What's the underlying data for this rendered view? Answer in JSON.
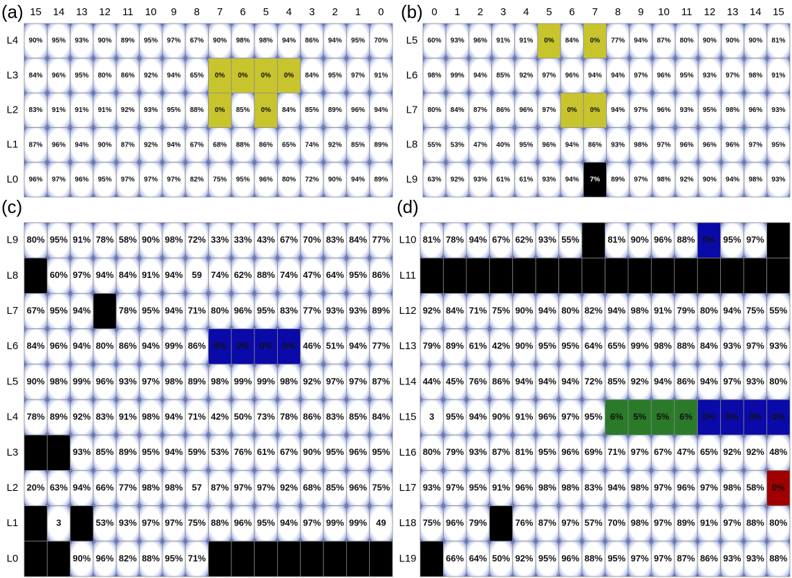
{
  "panels": [
    {
      "label": "(a)",
      "columns": [
        "15",
        "14",
        "13",
        "12",
        "11",
        "10",
        "9",
        "8",
        "7",
        "6",
        "5",
        "4",
        "3",
        "2",
        "1",
        "0"
      ],
      "rows": [
        {
          "label": "L4",
          "cells": [
            "90%",
            "95%",
            "93%",
            "90%",
            "89%",
            "95%",
            "97%",
            "67%",
            "90%",
            "98%",
            "98%",
            "94%",
            "86%",
            "94%",
            "95%",
            "70%"
          ]
        },
        {
          "label": "L3",
          "cells": [
            "84%",
            "96%",
            "95%",
            "80%",
            "86%",
            "92%",
            "94%",
            "65%",
            "0%",
            "0%",
            "0%",
            "0%",
            "84%",
            "95%",
            "97%",
            "91%"
          ]
        },
        {
          "label": "L2",
          "cells": [
            "83%",
            "91%",
            "91%",
            "91%",
            "92%",
            "93%",
            "95%",
            "88%",
            "0%",
            "85%",
            "0%",
            "84%",
            "85%",
            "89%",
            "96%",
            "94%"
          ]
        },
        {
          "label": "L1",
          "cells": [
            "87%",
            "96%",
            "94%",
            "90%",
            "87%",
            "92%",
            "94%",
            "67%",
            "68%",
            "88%",
            "86%",
            "65%",
            "74%",
            "92%",
            "85%",
            "89%"
          ]
        },
        {
          "label": "L0",
          "cells": [
            "96%",
            "97%",
            "96%",
            "95%",
            "97%",
            "97%",
            "97%",
            "82%",
            "75%",
            "95%",
            "96%",
            "80%",
            "72%",
            "90%",
            "94%",
            "89%"
          ]
        }
      ],
      "highlights": [
        {
          "color": "#c8c42e",
          "cells": [
            [
              1,
              8
            ],
            [
              1,
              9
            ],
            [
              1,
              10
            ],
            [
              1,
              11
            ],
            [
              2,
              8
            ],
            [
              2,
              10
            ]
          ]
        }
      ]
    },
    {
      "label": "(b)",
      "columns": [
        "0",
        "1",
        "2",
        "3",
        "4",
        "5",
        "6",
        "7",
        "8",
        "9",
        "10",
        "11",
        "12",
        "13",
        "14",
        "15"
      ],
      "rows": [
        {
          "label": "L5",
          "cells": [
            "60%",
            "93%",
            "96%",
            "91%",
            "91%",
            "0%",
            "84%",
            "0%",
            "77%",
            "94%",
            "87%",
            "80%",
            "90%",
            "90%",
            "90%",
            "81%"
          ]
        },
        {
          "label": "L6",
          "cells": [
            "98%",
            "99%",
            "94%",
            "85%",
            "92%",
            "97%",
            "96%",
            "94%",
            "94%",
            "97%",
            "96%",
            "95%",
            "93%",
            "97%",
            "98%",
            "91%"
          ]
        },
        {
          "label": "L7",
          "cells": [
            "80%",
            "84%",
            "87%",
            "86%",
            "96%",
            "97%",
            "0%",
            "0%",
            "94%",
            "97%",
            "96%",
            "93%",
            "95%",
            "98%",
            "96%",
            "93%"
          ]
        },
        {
          "label": "L8",
          "cells": [
            "55%",
            "53%",
            "47%",
            "40%",
            "95%",
            "96%",
            "94%",
            "86%",
            "93%",
            "98%",
            "97%",
            "96%",
            "96%",
            "96%",
            "97%",
            "95%"
          ]
        },
        {
          "label": "L9",
          "cells": [
            "63%",
            "92%",
            "93%",
            "61%",
            "61%",
            "93%",
            "94%",
            "7%",
            "89%",
            "97%",
            "98%",
            "92%",
            "90%",
            "94%",
            "98%",
            "93%"
          ]
        }
      ],
      "highlights": [
        {
          "color": "#c8c42e",
          "cells": [
            [
              0,
              5
            ],
            [
              0,
              7
            ],
            [
              2,
              6
            ],
            [
              2,
              7
            ]
          ]
        },
        {
          "color": "#000000",
          "cells": [
            [
              4,
              7
            ]
          ]
        }
      ]
    },
    {
      "label": "(c)",
      "columns": [],
      "rows": [
        {
          "label": "L9",
          "cells": [
            "80%",
            "95%",
            "91%",
            "78%",
            "58%",
            "90%",
            "98%",
            "72%",
            "33%",
            "33%",
            "43%",
            "67%",
            "70%",
            "83%",
            "84%",
            "77%"
          ]
        },
        {
          "label": "L8",
          "cells": [
            null,
            "60%",
            "97%",
            "94%",
            "84%",
            "91%",
            "94%",
            "59",
            "74%",
            "62%",
            "88%",
            "74%",
            "47%",
            "64%",
            "95%",
            "86%"
          ]
        },
        {
          "label": "L7",
          "cells": [
            "67%",
            "95%",
            "94%",
            null,
            "78%",
            "95%",
            "94%",
            "71%",
            "80%",
            "96%",
            "95%",
            "83%",
            "77%",
            "93%",
            "93%",
            "89%"
          ]
        },
        {
          "label": "L6",
          "cells": [
            "84%",
            "96%",
            "94%",
            "80%",
            "86%",
            "94%",
            "99%",
            "86%",
            "0%",
            "0%",
            "0%",
            "0%",
            "46%",
            "51%",
            "94%",
            "77%"
          ]
        },
        {
          "label": "L5",
          "cells": [
            "90%",
            "98%",
            "99%",
            "96%",
            "93%",
            "97%",
            "98%",
            "89%",
            "98%",
            "99%",
            "99%",
            "98%",
            "92%",
            "97%",
            "97%",
            "87%"
          ]
        },
        {
          "label": "L4",
          "cells": [
            "78%",
            "89%",
            "92%",
            "83%",
            "91%",
            "98%",
            "94%",
            "71%",
            "42%",
            "50%",
            "73%",
            "78%",
            "86%",
            "83%",
            "85%",
            "84%"
          ]
        },
        {
          "label": "L3",
          "cells": [
            null,
            null,
            "93%",
            "85%",
            "89%",
            "95%",
            "94%",
            "59%",
            "53%",
            "76%",
            "61%",
            "67%",
            "90%",
            "95%",
            "96%",
            "95%"
          ]
        },
        {
          "label": "L2",
          "cells": [
            "20%",
            "63%",
            "94%",
            "66%",
            "77%",
            "98%",
            "98%",
            "57",
            "87%",
            "97%",
            "97%",
            "92%",
            "68%",
            "85%",
            "96%",
            "75%"
          ]
        },
        {
          "label": "L1",
          "cells": [
            null,
            "3",
            null,
            "53%",
            "93%",
            "97%",
            "97%",
            "75%",
            "88%",
            "96%",
            "95%",
            "94%",
            "97%",
            "99%",
            "99%",
            "49"
          ]
        },
        {
          "label": "L0",
          "cells": [
            null,
            null,
            "90%",
            "96%",
            "82%",
            "88%",
            "95%",
            "71%",
            null,
            null,
            null,
            null,
            null,
            null,
            null,
            null
          ]
        }
      ],
      "highlights": [
        {
          "color": "#0a0aa8",
          "cells": [
            [
              3,
              8
            ],
            [
              3,
              9
            ],
            [
              3,
              10
            ],
            [
              3,
              11
            ]
          ]
        }
      ]
    },
    {
      "label": "(d)",
      "columns": [],
      "rows": [
        {
          "label": "L10",
          "cells": [
            "81%",
            "78%",
            "94%",
            "67%",
            "62%",
            "93%",
            "55%",
            null,
            "81%",
            "90%",
            "96%",
            "88%",
            "0%",
            "95%",
            "97%",
            null
          ]
        },
        {
          "label": "L11",
          "cells": [
            null,
            null,
            null,
            null,
            null,
            null,
            null,
            null,
            null,
            null,
            null,
            null,
            null,
            null,
            null,
            null
          ]
        },
        {
          "label": "L12",
          "cells": [
            "92%",
            "84%",
            "71%",
            "75%",
            "90%",
            "94%",
            "80%",
            "82%",
            "94%",
            "98%",
            "91%",
            "79%",
            "80%",
            "94%",
            "75%",
            "55%"
          ]
        },
        {
          "label": "L13",
          "cells": [
            "79%",
            "89%",
            "61%",
            "42%",
            "90%",
            "95%",
            "95%",
            "64%",
            "65%",
            "99%",
            "98%",
            "88%",
            "84%",
            "93%",
            "97%",
            "93%"
          ]
        },
        {
          "label": "L14",
          "cells": [
            "44%",
            "45%",
            "76%",
            "86%",
            "94%",
            "94%",
            "94%",
            "72%",
            "85%",
            "92%",
            "94%",
            "86%",
            "94%",
            "97%",
            "93%",
            "80%"
          ]
        },
        {
          "label": "L15",
          "cells": [
            "3",
            "95%",
            "94%",
            "90%",
            "91%",
            "96%",
            "97%",
            "95%",
            "6%",
            "5%",
            "5%",
            "6%",
            "0%",
            "0%",
            "0%",
            "0%"
          ]
        },
        {
          "label": "L16",
          "cells": [
            "80%",
            "79%",
            "93%",
            "87%",
            "81%",
            "95%",
            "96%",
            "69%",
            "71%",
            "97%",
            "67%",
            "47%",
            "65%",
            "92%",
            "92%",
            "48%"
          ]
        },
        {
          "label": "L17",
          "cells": [
            "93%",
            "97%",
            "95%",
            "91%",
            "96%",
            "98%",
            "98%",
            "83%",
            "94%",
            "98%",
            "97%",
            "96%",
            "97%",
            "98%",
            "58%",
            "0%"
          ]
        },
        {
          "label": "L18",
          "cells": [
            "75%",
            "96%",
            "79%",
            null,
            "76%",
            "87%",
            "97%",
            "57%",
            "70%",
            "98%",
            "97%",
            "89%",
            "91%",
            "97%",
            "88%",
            "80%"
          ]
        },
        {
          "label": "L19",
          "cells": [
            null,
            "66%",
            "64%",
            "50%",
            "92%",
            "95%",
            "96%",
            "88%",
            "95%",
            "97%",
            "97%",
            "87%",
            "86%",
            "93%",
            "93%",
            "88%"
          ]
        }
      ],
      "highlights": [
        {
          "color": "#0a0aa8",
          "cells": [
            [
              0,
              12
            ],
            [
              5,
              12
            ],
            [
              5,
              13
            ],
            [
              5,
              14
            ],
            [
              5,
              15
            ]
          ]
        },
        {
          "color": "#2a7a2a",
          "cells": [
            [
              5,
              8
            ],
            [
              5,
              9
            ],
            [
              5,
              10
            ],
            [
              5,
              11
            ]
          ]
        },
        {
          "color": "#a00000",
          "cells": [
            [
              7,
              15
            ]
          ]
        }
      ]
    }
  ]
}
